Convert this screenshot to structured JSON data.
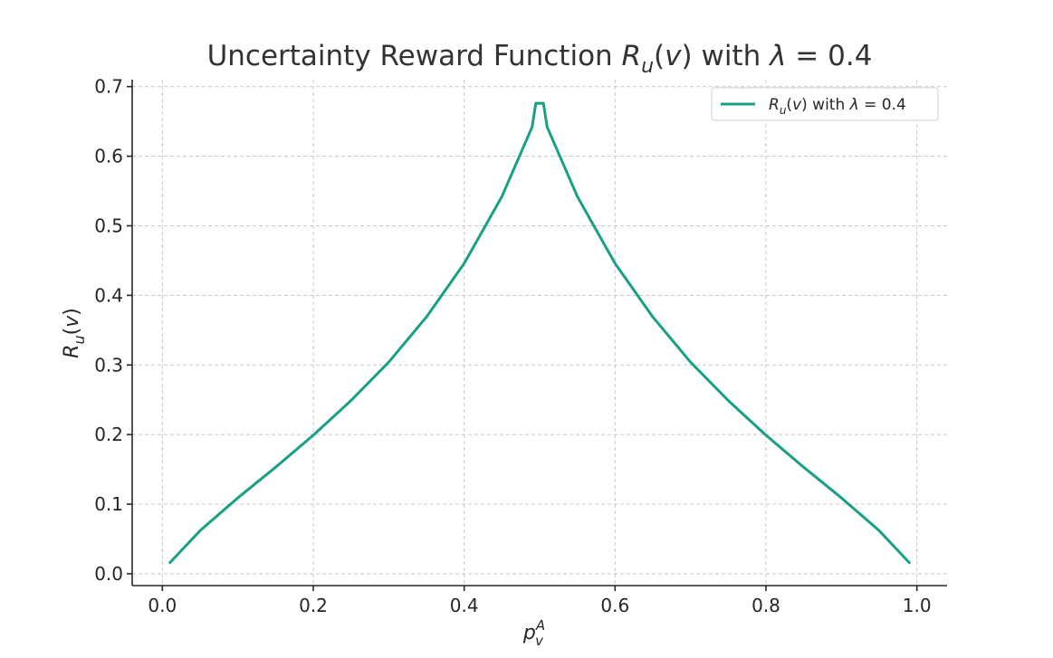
{
  "chart_data": {
    "type": "line",
    "title": "Uncertainty Reward Function R_u(v) with λ = 0.4",
    "xlabel": "p_v^A",
    "ylabel": "R_u(v)",
    "xlim": [
      -0.04,
      1.04
    ],
    "ylim": [
      -0.017,
      0.71
    ],
    "xticks": [
      0.0,
      0.2,
      0.4,
      0.6,
      0.8,
      1.0
    ],
    "xtick_labels": [
      "0.0",
      "0.2",
      "0.4",
      "0.6",
      "0.8",
      "1.0"
    ],
    "yticks": [
      0.0,
      0.1,
      0.2,
      0.3,
      0.4,
      0.5,
      0.6,
      0.7
    ],
    "ytick_labels": [
      "0.0",
      "0.1",
      "0.2",
      "0.3",
      "0.4",
      "0.5",
      "0.6",
      "0.7"
    ],
    "grid": true,
    "legend_position": "top-right",
    "series": [
      {
        "name": "R_u(v) with λ = 0.4",
        "color": "#17a083",
        "x": [
          0.01,
          0.05,
          0.1,
          0.15,
          0.2,
          0.25,
          0.3,
          0.35,
          0.4,
          0.45,
          0.49,
          0.495,
          0.505,
          0.51,
          0.55,
          0.6,
          0.65,
          0.7,
          0.75,
          0.8,
          0.85,
          0.9,
          0.95,
          0.99
        ],
        "y": [
          0.016,
          0.062,
          0.109,
          0.153,
          0.199,
          0.249,
          0.304,
          0.369,
          0.446,
          0.542,
          0.642,
          0.676,
          0.676,
          0.642,
          0.542,
          0.446,
          0.369,
          0.304,
          0.249,
          0.199,
          0.153,
          0.109,
          0.062,
          0.016
        ]
      }
    ]
  }
}
